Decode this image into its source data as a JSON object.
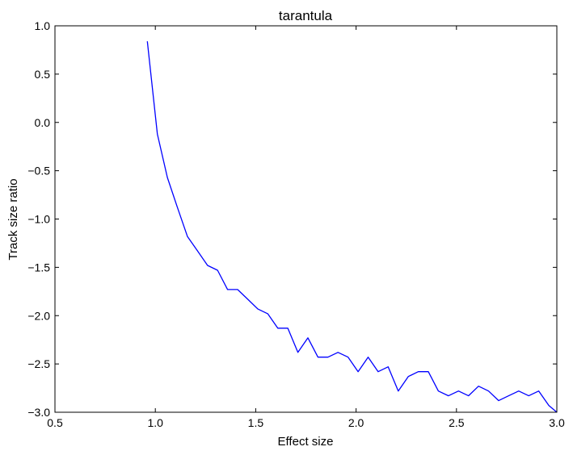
{
  "chart_data": {
    "type": "line",
    "title": "tarantula",
    "xlabel": "Effect size",
    "ylabel": "Track size ratio",
    "xlim": [
      0.5,
      3.0
    ],
    "ylim": [
      -3.0,
      1.0
    ],
    "xticks": [
      0.5,
      1.0,
      1.5,
      2.0,
      2.5,
      3.0
    ],
    "xtick_labels": [
      "0.5",
      "1.0",
      "1.5",
      "2.0",
      "2.5",
      "3.0"
    ],
    "yticks": [
      1.0,
      0.5,
      0.0,
      -0.5,
      -1.0,
      -1.5,
      -2.0,
      -2.5,
      -3.0
    ],
    "ytick_labels": [
      "1.0",
      "0.5",
      "0.0",
      "−0.5",
      "−1.0",
      "−1.5",
      "−2.0",
      "−2.5",
      "−3.0"
    ],
    "grid": false,
    "series": [
      {
        "color": "#0000ff",
        "x": [
          0.96,
          1.01,
          1.06,
          1.11,
          1.16,
          1.21,
          1.26,
          1.31,
          1.36,
          1.41,
          1.46,
          1.51,
          1.56,
          1.61,
          1.66,
          1.71,
          1.76,
          1.81,
          1.86,
          1.91,
          1.96,
          2.01,
          2.06,
          2.11,
          2.16,
          2.21,
          2.26,
          2.31,
          2.36,
          2.41,
          2.46,
          2.51,
          2.56,
          2.61,
          2.66,
          2.71,
          2.76,
          2.81,
          2.86,
          2.91,
          2.96,
          3.0
        ],
        "y": [
          0.84,
          -0.12,
          -0.57,
          -0.88,
          -1.18,
          -1.33,
          -1.48,
          -1.53,
          -1.73,
          -1.73,
          -1.83,
          -1.93,
          -1.98,
          -2.13,
          -2.13,
          -2.38,
          -2.23,
          -2.43,
          -2.43,
          -2.38,
          -2.43,
          -2.58,
          -2.43,
          -2.58,
          -2.53,
          -2.78,
          -2.63,
          -2.58,
          -2.58,
          -2.78,
          -2.83,
          -2.78,
          -2.83,
          -2.73,
          -2.78,
          -2.88,
          -2.83,
          -2.78,
          -2.83,
          -2.78,
          -2.93,
          -3.0
        ]
      }
    ]
  }
}
